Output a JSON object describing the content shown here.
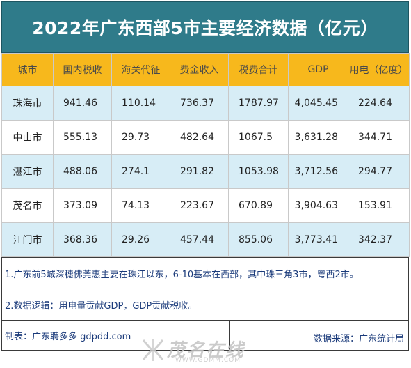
{
  "title": "2022年广东西部5市主要经济数据（亿元）",
  "headers": [
    "城市",
    "国内税收",
    "海关代征",
    "费金收入",
    "税费合计",
    "GDP",
    "用电（亿度）"
  ],
  "rows": [
    {
      "city": "珠海市",
      "tax": "941.46",
      "customs": "110.14",
      "fee": "736.37",
      "total": "1787.97",
      "gdp": "4,045.45",
      "power": "224.64"
    },
    {
      "city": "中山市",
      "tax": "555.13",
      "customs": "29.73",
      "fee": "482.64",
      "total": "1067.5",
      "gdp": "3,631.28",
      "power": "344.71"
    },
    {
      "city": "湛江市",
      "tax": "488.06",
      "customs": "274.1",
      "fee": "291.82",
      "total": "1053.98",
      "gdp": "3,712.56",
      "power": "294.77"
    },
    {
      "city": "茂名市",
      "tax": "373.09",
      "customs": "74.13",
      "fee": "223.67",
      "total": "670.89",
      "gdp": "3,904.63",
      "power": "153.91"
    },
    {
      "city": "江门市",
      "tax": "368.36",
      "customs": "29.26",
      "fee": "457.44",
      "total": "855.06",
      "gdp": "3,773.41",
      "power": "342.37"
    }
  ],
  "notes": [
    "1.广东前5城深穗佛莞惠主要在珠江以东，6-10基本在西部，其中珠三角3市，粤西2市。",
    "2.数据逻辑：用电量贡献GDP，GDP贡献税收。"
  ],
  "footer": {
    "maker": "制表：广东聘多多 gdpdd.com",
    "source": "数据来源：广东统计局"
  },
  "watermark": {
    "logo_text": "茂名在线",
    "url": "WWW.GDMM.COM"
  }
}
